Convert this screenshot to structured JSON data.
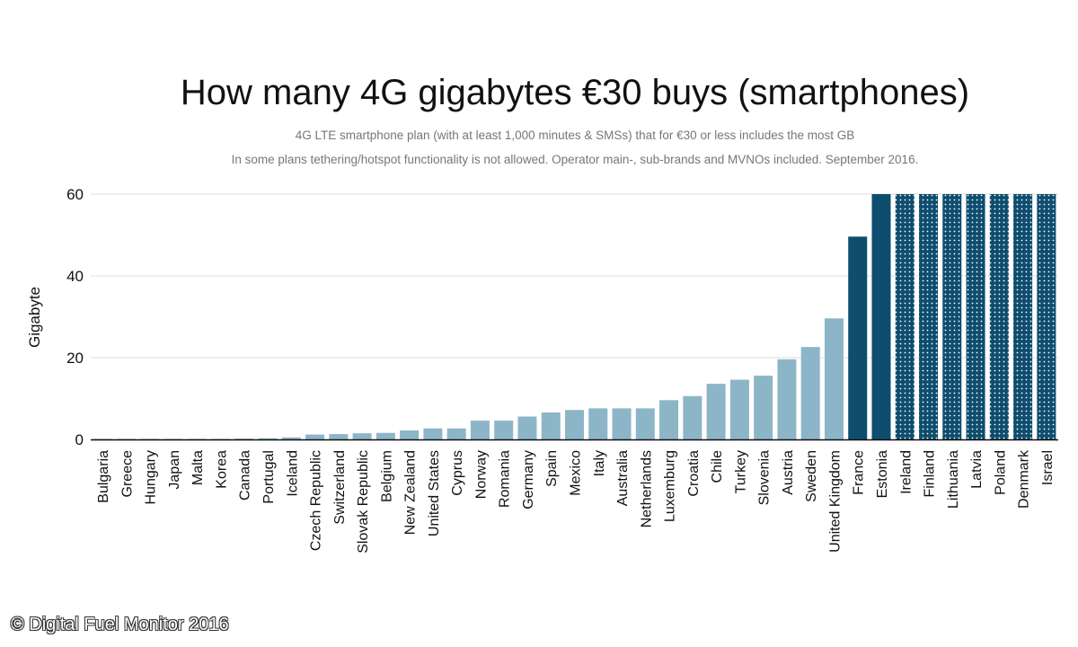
{
  "chart_data": {
    "type": "bar",
    "title": "How many 4G gigabytes €30 buys (smartphones)",
    "subtitle_lines": [
      "4G LTE smartphone plan (with at least 1,000 minutes & SMSs) that for €30 or less includes the most GB",
      "In some plans tethering/hotspot functionality is not allowed. Operator main-, sub-brands and MVNOs included. September 2016."
    ],
    "ylabel": "Gigabyte",
    "xlabel": "",
    "ylim": [
      0,
      60
    ],
    "yticks": [
      "0",
      "20",
      "40",
      "60"
    ],
    "grid": true,
    "categories": [
      "Bulgaria",
      "Greece",
      "Hungary",
      "Japan",
      "Malta",
      "Korea",
      "Canada",
      "Portugal",
      "Iceland",
      "Czech Republic",
      "Switzerland",
      "Slovak Republic",
      "Belgium",
      "New Zealand",
      "United States",
      "Cyprus",
      "Norway",
      "Romania",
      "Germany",
      "Spain",
      "Mexico",
      "Italy",
      "Australia",
      "Netherlands",
      "Luxemburg",
      "Croatia",
      "Chile",
      "Turkey",
      "Slovenia",
      "Austria",
      "Sweden",
      "United Kingdom",
      "France",
      "Estonia",
      "Ireland",
      "Finland",
      "Lithuania",
      "Latvia",
      "Poland",
      "Denmark",
      "Israel"
    ],
    "values": [
      0.1,
      0.1,
      0.1,
      0.1,
      0.1,
      0.1,
      0.2,
      0.3,
      0.5,
      1.2,
      1.3,
      1.5,
      1.6,
      2.2,
      2.7,
      2.7,
      4.6,
      4.6,
      5.6,
      6.6,
      7.2,
      7.6,
      7.6,
      7.6,
      9.6,
      10.6,
      13.6,
      14.6,
      15.6,
      19.6,
      22.6,
      29.6,
      49.6,
      60,
      60,
      60,
      60,
      60,
      60,
      60,
      60
    ],
    "bar_style": [
      "light",
      "light",
      "light",
      "light",
      "light",
      "light",
      "light",
      "light",
      "light",
      "light",
      "light",
      "light",
      "light",
      "light",
      "light",
      "light",
      "light",
      "light",
      "light",
      "light",
      "light",
      "light",
      "light",
      "light",
      "light",
      "light",
      "light",
      "light",
      "light",
      "light",
      "light",
      "light",
      "dark",
      "dark",
      "dotted",
      "dotted",
      "dotted",
      "dotted",
      "dotted",
      "dotted",
      "dotted"
    ],
    "colors": {
      "light": "#8db5c8",
      "dark": "#0e4d6e",
      "dotted": "#0e4d6e"
    }
  },
  "footer": {
    "copyright": "© Digital Fuel Monitor 2016"
  }
}
